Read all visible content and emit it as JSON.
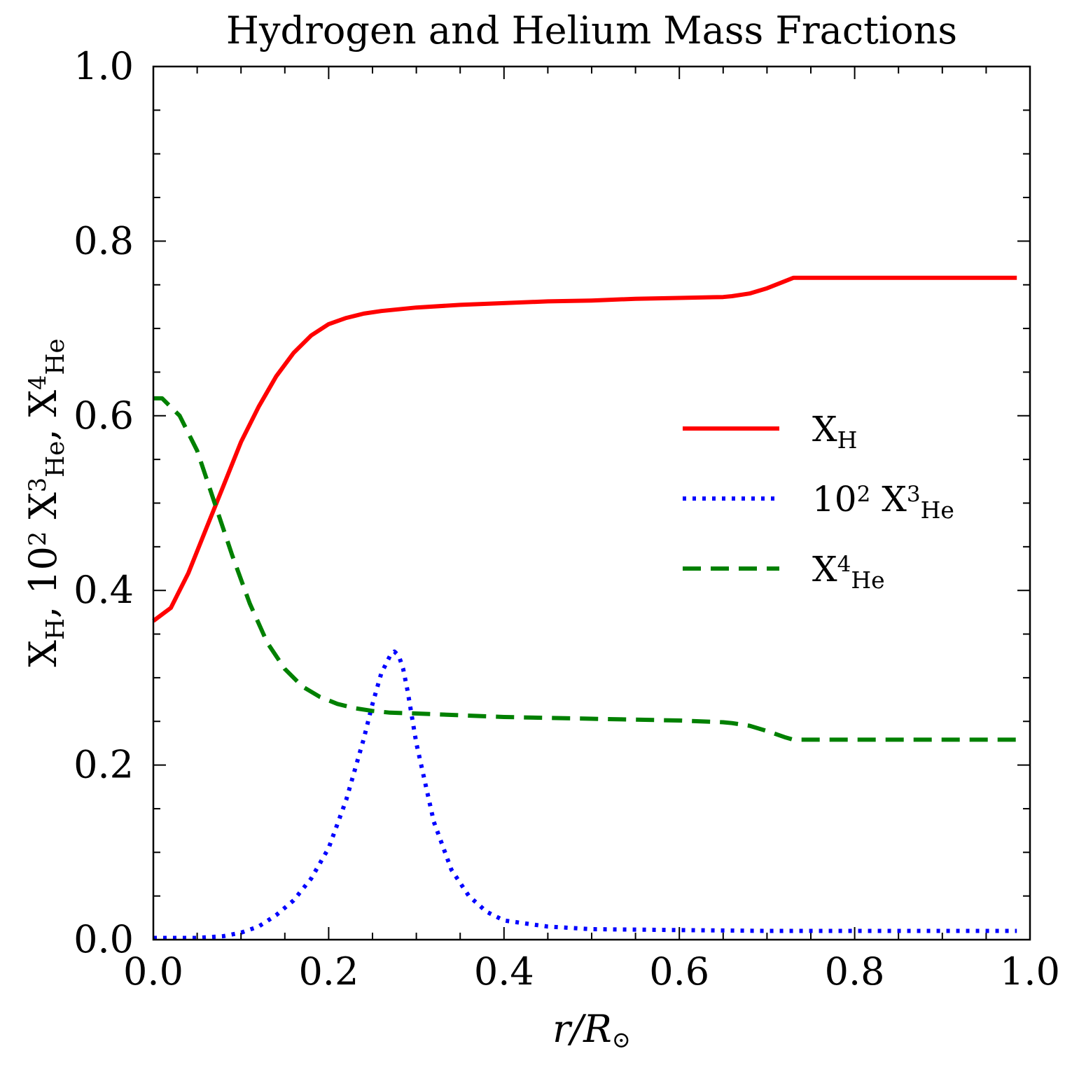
{
  "chart_data": {
    "type": "line",
    "title": "Hydrogen and Helium Mass Fractions",
    "xlabel": {
      "main": "r/R",
      "suffix": "⊙"
    },
    "ylabel": {
      "parts": [
        {
          "t": "X"
        },
        {
          "t": "H",
          "sub": true
        },
        {
          "t": ", 10"
        },
        {
          "t": "2",
          "sup": true
        },
        {
          "t": " X"
        },
        {
          "t": "3",
          "sup": true
        },
        {
          "t": "He",
          "sub": true
        },
        {
          "t": ", X"
        },
        {
          "t": "4",
          "sup": true
        },
        {
          "t": "He",
          "sub": true
        }
      ]
    },
    "xlim": [
      0.0,
      1.0
    ],
    "ylim": [
      0.0,
      1.0
    ],
    "xticks": [
      "0.0",
      "0.2",
      "0.4",
      "0.6",
      "0.8",
      "1.0"
    ],
    "yticks": [
      "0.0",
      "0.2",
      "0.4",
      "0.6",
      "0.8",
      "1.0"
    ],
    "legend_position": "center-right",
    "series": [
      {
        "key": "xh",
        "label_parts": [
          {
            "t": "X"
          },
          {
            "t": "H",
            "sub": true
          }
        ],
        "color": "#ff0000",
        "style": "solid",
        "x": [
          0.0,
          0.02,
          0.04,
          0.06,
          0.08,
          0.1,
          0.12,
          0.14,
          0.16,
          0.18,
          0.2,
          0.22,
          0.24,
          0.26,
          0.28,
          0.3,
          0.35,
          0.4,
          0.45,
          0.5,
          0.55,
          0.6,
          0.65,
          0.66,
          0.68,
          0.7,
          0.72,
          0.73,
          0.75,
          0.8,
          0.85,
          0.9,
          0.95,
          0.985
        ],
        "y": [
          0.365,
          0.38,
          0.42,
          0.47,
          0.52,
          0.57,
          0.61,
          0.645,
          0.672,
          0.692,
          0.705,
          0.712,
          0.717,
          0.72,
          0.722,
          0.724,
          0.727,
          0.729,
          0.731,
          0.732,
          0.734,
          0.735,
          0.736,
          0.737,
          0.74,
          0.746,
          0.754,
          0.758,
          0.758,
          0.758,
          0.758,
          0.758,
          0.758,
          0.758
        ]
      },
      {
        "key": "x3he",
        "label_parts": [
          {
            "t": "10"
          },
          {
            "t": "2",
            "sup": true
          },
          {
            "t": " X"
          },
          {
            "t": "3",
            "sup": true
          },
          {
            "t": "He",
            "sub": true
          }
        ],
        "color": "#0000ff",
        "style": "dotted",
        "x": [
          0.0,
          0.05,
          0.08,
          0.1,
          0.12,
          0.14,
          0.16,
          0.18,
          0.2,
          0.22,
          0.24,
          0.25,
          0.26,
          0.27,
          0.275,
          0.28,
          0.285,
          0.29,
          0.3,
          0.32,
          0.34,
          0.36,
          0.38,
          0.4,
          0.45,
          0.5,
          0.6,
          0.7,
          0.8,
          0.9,
          0.985
        ],
        "y": [
          0.002,
          0.002,
          0.004,
          0.008,
          0.015,
          0.028,
          0.045,
          0.07,
          0.105,
          0.16,
          0.23,
          0.27,
          0.305,
          0.325,
          0.33,
          0.325,
          0.31,
          0.285,
          0.225,
          0.135,
          0.08,
          0.05,
          0.032,
          0.022,
          0.015,
          0.012,
          0.011,
          0.01,
          0.01,
          0.01,
          0.01
        ]
      },
      {
        "key": "x4he",
        "label_parts": [
          {
            "t": "X"
          },
          {
            "t": "4",
            "sup": true
          },
          {
            "t": "He",
            "sub": true
          }
        ],
        "color": "#008000",
        "style": "dashed",
        "x": [
          0.0,
          0.01,
          0.03,
          0.05,
          0.07,
          0.09,
          0.11,
          0.13,
          0.15,
          0.17,
          0.19,
          0.21,
          0.23,
          0.25,
          0.27,
          0.3,
          0.35,
          0.4,
          0.45,
          0.5,
          0.55,
          0.6,
          0.65,
          0.66,
          0.68,
          0.7,
          0.72,
          0.73,
          0.75,
          0.8,
          0.85,
          0.9,
          0.95,
          0.985
        ],
        "y": [
          0.62,
          0.62,
          0.6,
          0.56,
          0.5,
          0.44,
          0.385,
          0.34,
          0.31,
          0.29,
          0.278,
          0.27,
          0.265,
          0.262,
          0.26,
          0.259,
          0.257,
          0.255,
          0.254,
          0.253,
          0.252,
          0.251,
          0.249,
          0.248,
          0.245,
          0.239,
          0.232,
          0.229,
          0.229,
          0.229,
          0.229,
          0.229,
          0.229,
          0.229
        ]
      }
    ]
  }
}
